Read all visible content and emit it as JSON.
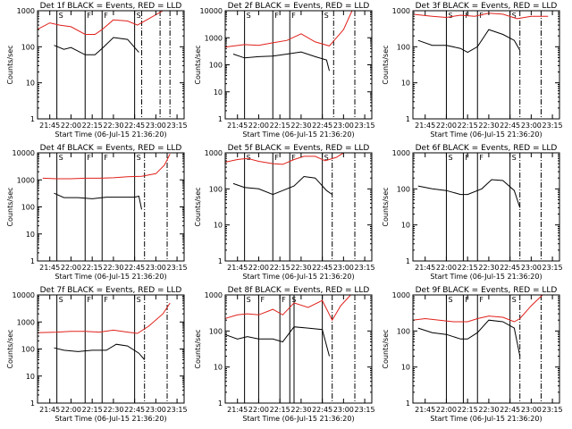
{
  "chart_data": [
    {
      "type": "line",
      "title": "Det 1f BLACK = Events, RED = LLD",
      "xlabel": "Start Time (06-Jul-15 21:36:20)",
      "ylabel": "Counts/sec",
      "log_y": true,
      "ylim": [
        1,
        1000
      ],
      "xlim": [
        "21:36:20",
        "23:20"
      ],
      "x_ticks": [
        "21:45",
        "22:00",
        "22:15",
        "22:30",
        "22:45",
        "23:00",
        "23:15"
      ],
      "y_ticks": [
        "1",
        "10",
        "100",
        "1000"
      ],
      "markers": {
        "solid": [
          "21:50",
          "22:10",
          "22:22",
          "22:45"
        ],
        "dashed": [
          "22:50",
          "23:03",
          "23:10"
        ],
        "labels": [
          "S",
          "F",
          "F",
          "S"
        ]
      },
      "series": [
        {
          "color": "#e0201a",
          "x": [
            "21:36",
            "21:45",
            "21:52",
            "22:00",
            "22:10",
            "22:17",
            "22:22",
            "22:30",
            "22:40",
            "22:47",
            "22:55",
            "23:05"
          ],
          "y": [
            300,
            460,
            400,
            360,
            220,
            220,
            300,
            560,
            520,
            400,
            600,
            1000
          ]
        },
        {
          "color": "#000000",
          "x": [
            "21:48",
            "21:55",
            "22:00",
            "22:10",
            "22:17",
            "22:22",
            "22:30",
            "22:40",
            "22:48"
          ],
          "y": [
            110,
            85,
            95,
            60,
            60,
            90,
            180,
            160,
            70
          ]
        }
      ]
    },
    {
      "type": "line",
      "title": "Det 2f BLACK = Events, RED = LLD",
      "xlabel": "Start Time (06-Jul-15 21:36:20)",
      "ylabel": "Counts/sec",
      "log_y": true,
      "ylim": [
        1,
        10000
      ],
      "xlim": [
        "21:36:20",
        "23:20"
      ],
      "x_ticks": [
        "21:45",
        "22:00",
        "22:15",
        "22:30",
        "22:45",
        "23:00",
        "23:15"
      ],
      "y_ticks": [
        "1",
        "10",
        "100",
        "1000",
        "10000"
      ],
      "markers": {
        "solid": [
          "21:50",
          "22:10",
          "22:22",
          "22:45"
        ],
        "dashed": [
          "22:53",
          "23:08"
        ],
        "labels": [
          "S",
          "F",
          "F",
          "S"
        ]
      },
      "series": [
        {
          "color": "#e0201a",
          "x": [
            "21:36",
            "21:50",
            "22:00",
            "22:10",
            "22:20",
            "22:30",
            "22:40",
            "22:50",
            "23:00",
            "23:06"
          ],
          "y": [
            450,
            560,
            520,
            650,
            800,
            1400,
            700,
            500,
            2000,
            10000
          ]
        },
        {
          "color": "#000000",
          "x": [
            "21:42",
            "21:50",
            "22:00",
            "22:10",
            "22:20",
            "22:30",
            "22:40",
            "22:48",
            "22:50"
          ],
          "y": [
            250,
            180,
            200,
            210,
            250,
            300,
            200,
            150,
            60
          ]
        }
      ]
    },
    {
      "type": "line",
      "title": "Det 3f BLACK = Events, RED = LLD",
      "xlabel": "Start Time (06-Jul-15 21:36:20)",
      "ylabel": "Counts/sec",
      "log_y": true,
      "ylim": [
        1,
        1000
      ],
      "xlim": [
        "21:36:20",
        "23:20"
      ],
      "x_ticks": [
        "21:45",
        "22:00",
        "22:15",
        "22:30",
        "22:45",
        "23:00",
        "23:15"
      ],
      "y_ticks": [
        "1",
        "10",
        "100",
        "1000"
      ],
      "markers": {
        "solid": [
          "22:00",
          "22:12",
          "22:22",
          "22:45"
        ],
        "dashed": [
          "22:52",
          "23:07"
        ],
        "labels": [
          "S",
          "F",
          "F",
          "S"
        ]
      },
      "series": [
        {
          "color": "#e0201a",
          "x": [
            "21:36",
            "21:50",
            "22:00",
            "22:10",
            "22:20",
            "22:30",
            "22:40",
            "22:50",
            "23:00",
            "23:12"
          ],
          "y": [
            800,
            700,
            650,
            750,
            700,
            850,
            800,
            600,
            700,
            700
          ]
        },
        {
          "color": "#000000",
          "x": [
            "21:40",
            "21:50",
            "22:00",
            "22:10",
            "22:15",
            "22:22",
            "22:30",
            "22:40",
            "22:48",
            "22:52"
          ],
          "y": [
            150,
            110,
            110,
            90,
            70,
            100,
            300,
            220,
            150,
            80
          ]
        }
      ]
    },
    {
      "type": "line",
      "title": "Det 4f BLACK = Events, RED = LLD",
      "xlabel": "Start Time (06-Jul-15 21:36:20)",
      "ylabel": "Counts/sec",
      "log_y": true,
      "ylim": [
        1,
        10000
      ],
      "xlim": [
        "21:36:20",
        "23:20"
      ],
      "x_ticks": [
        "21:45",
        "22:00",
        "22:15",
        "22:30",
        "22:45",
        "23:00",
        "23:15"
      ],
      "y_ticks": [
        "1",
        "10",
        "100",
        "1000",
        "10000"
      ],
      "markers": {
        "solid": [
          "21:50",
          "22:10",
          "22:22",
          "22:45"
        ],
        "dashed": [
          "22:52",
          "23:08"
        ],
        "labels": [
          "S",
          "F",
          "F",
          "S"
        ]
      },
      "series": [
        {
          "color": "#e0201a",
          "x": [
            "21:40",
            "21:50",
            "22:00",
            "22:10",
            "22:20",
            "22:30",
            "22:40",
            "22:50",
            "23:00",
            "23:06",
            "23:10"
          ],
          "y": [
            1150,
            1100,
            1100,
            1150,
            1150,
            1200,
            1300,
            1350,
            1700,
            3500,
            9000
          ]
        },
        {
          "color": "#000000",
          "x": [
            "21:48",
            "21:55",
            "22:05",
            "22:15",
            "22:25",
            "22:35",
            "22:45",
            "22:48",
            "22:50"
          ],
          "y": [
            320,
            220,
            220,
            200,
            230,
            230,
            230,
            250,
            80
          ]
        }
      ]
    },
    {
      "type": "line",
      "title": "Det 5f BLACK = Events, RED = LLD",
      "xlabel": "Start Time (06-Jul-15 21:36:20)",
      "ylabel": "Counts/sec",
      "log_y": true,
      "ylim": [
        1,
        1000
      ],
      "xlim": [
        "21:36:20",
        "23:20"
      ],
      "x_ticks": [
        "21:45",
        "22:00",
        "22:15",
        "22:30",
        "22:45",
        "23:00",
        "23:15"
      ],
      "y_ticks": [
        "1",
        "10",
        "100",
        "1000"
      ],
      "markers": {
        "solid": [
          "21:50",
          "22:10",
          "22:22",
          "22:45"
        ],
        "dashed": [
          "22:52",
          "23:08"
        ],
        "labels": [
          "S",
          "F",
          "F",
          "S"
        ]
      },
      "series": [
        {
          "color": "#e0201a",
          "x": [
            "21:36",
            "21:45",
            "21:52",
            "22:00",
            "22:10",
            "22:17",
            "22:25",
            "22:32",
            "22:40",
            "22:47",
            "22:55",
            "23:00"
          ],
          "y": [
            550,
            650,
            700,
            580,
            500,
            480,
            650,
            800,
            800,
            600,
            750,
            1000
          ]
        },
        {
          "color": "#000000",
          "x": [
            "21:42",
            "21:50",
            "22:00",
            "22:10",
            "22:17",
            "22:25",
            "22:32",
            "22:40",
            "22:48",
            "22:52"
          ],
          "y": [
            140,
            110,
            100,
            70,
            90,
            120,
            220,
            200,
            90,
            70
          ]
        }
      ]
    },
    {
      "type": "line",
      "title": "Det 6f BLACK = Events, RED = LLD",
      "xlabel": "Start Time (06-Jul-15 21:36:20)",
      "ylabel": "Counts/sec",
      "log_y": true,
      "ylim": [
        1,
        1000
      ],
      "xlim": [
        "21:36:20",
        "23:20"
      ],
      "x_ticks": [
        "21:45",
        "22:00",
        "22:15",
        "22:30",
        "22:45",
        "23:00",
        "23:15"
      ],
      "y_ticks": [
        "1",
        "10",
        "100",
        "1000"
      ],
      "markers": {
        "solid": [
          "22:00",
          "22:12",
          "22:22",
          "22:45"
        ],
        "dashed": [
          "22:52",
          "23:07"
        ],
        "labels": [
          "S",
          "F",
          "F",
          "S"
        ]
      },
      "series": [
        {
          "color": "#000000",
          "x": [
            "21:40",
            "21:50",
            "22:00",
            "22:10",
            "22:15",
            "22:25",
            "22:32",
            "22:40",
            "22:48",
            "22:52"
          ],
          "y": [
            120,
            100,
            90,
            70,
            70,
            100,
            180,
            170,
            90,
            30
          ]
        }
      ]
    },
    {
      "type": "line",
      "title": "Det 7f BLACK = Events, RED = LLD",
      "xlabel": "Start Time (06-Jul-15 21:36:20)",
      "ylabel": "Counts/sec",
      "log_y": true,
      "ylim": [
        1,
        10000
      ],
      "xlim": [
        "21:36:20",
        "23:20"
      ],
      "x_ticks": [
        "21:45",
        "22:00",
        "22:15",
        "22:30",
        "22:45",
        "23:00",
        "23:15"
      ],
      "y_ticks": [
        "1",
        "10",
        "100",
        "1000",
        "10000"
      ],
      "markers": {
        "solid": [
          "21:50",
          "22:10",
          "22:22",
          "22:45"
        ],
        "dashed": [
          "22:52",
          "23:08"
        ],
        "labels": [
          "S",
          "F",
          "F",
          "S"
        ]
      },
      "series": [
        {
          "color": "#e0201a",
          "x": [
            "21:36",
            "21:50",
            "22:00",
            "22:10",
            "22:20",
            "22:30",
            "22:40",
            "22:47",
            "22:55",
            "23:05",
            "23:10"
          ],
          "y": [
            400,
            420,
            450,
            450,
            420,
            500,
            420,
            380,
            700,
            2000,
            5000
          ]
        },
        {
          "color": "#000000",
          "x": [
            "21:48",
            "21:55",
            "22:05",
            "22:15",
            "22:25",
            "22:32",
            "22:40",
            "22:48",
            "22:52"
          ],
          "y": [
            110,
            90,
            80,
            90,
            90,
            150,
            130,
            70,
            40
          ]
        }
      ]
    },
    {
      "type": "line",
      "title": "Det 8f BLACK = Events, RED = LLD",
      "xlabel": "Start Time (06-Jul-15 21:36:20)",
      "ylabel": "Counts/sec",
      "log_y": true,
      "ylim": [
        1,
        1000
      ],
      "xlim": [
        "21:36:20",
        "23:20"
      ],
      "x_ticks": [
        "21:45",
        "22:00",
        "22:15",
        "22:30",
        "22:45",
        "23:00",
        "23:15"
      ],
      "y_ticks": [
        "1",
        "10",
        "100",
        "1000"
      ],
      "markers": {
        "solid": [
          "21:50",
          "22:00",
          "22:15",
          "22:22",
          "22:25",
          "22:45"
        ],
        "dashed": [
          "22:52",
          "23:08"
        ],
        "labels": [
          "S",
          "F",
          "F",
          "S"
        ]
      },
      "series": [
        {
          "color": "#e0201a",
          "x": [
            "21:36",
            "21:45",
            "21:52",
            "22:00",
            "22:10",
            "22:17",
            "22:25",
            "22:35",
            "22:45",
            "22:52",
            "22:58",
            "23:05"
          ],
          "y": [
            220,
            280,
            300,
            280,
            400,
            280,
            600,
            450,
            700,
            200,
            500,
            1000
          ]
        },
        {
          "color": "#000000",
          "x": [
            "21:36",
            "21:45",
            "21:52",
            "22:00",
            "22:10",
            "22:17",
            "22:25",
            "22:35",
            "22:45",
            "22:50"
          ],
          "y": [
            80,
            60,
            70,
            60,
            60,
            50,
            130,
            120,
            110,
            20
          ]
        }
      ]
    },
    {
      "type": "line",
      "title": "Det 9f BLACK = Events, RED = LLD",
      "xlabel": "Start Time (06-Jul-15 21:36:20)",
      "ylabel": "Counts/sec",
      "log_y": true,
      "ylim": [
        1,
        1000
      ],
      "xlim": [
        "21:36:20",
        "23:20"
      ],
      "x_ticks": [
        "21:45",
        "22:00",
        "22:15",
        "22:30",
        "22:45",
        "23:00",
        "23:15"
      ],
      "y_ticks": [
        "1",
        "10",
        "100",
        "1000"
      ],
      "markers": {
        "solid": [
          "22:00",
          "22:12",
          "22:22",
          "22:45"
        ],
        "dashed": [
          "22:52",
          "23:07"
        ],
        "labels": [
          "S",
          "F",
          "F",
          "S"
        ]
      },
      "series": [
        {
          "color": "#e0201a",
          "x": [
            "21:36",
            "21:45",
            "21:55",
            "22:05",
            "22:15",
            "22:22",
            "22:30",
            "22:40",
            "22:48",
            "22:52",
            "23:00",
            "23:08"
          ],
          "y": [
            200,
            220,
            200,
            180,
            180,
            220,
            260,
            240,
            180,
            220,
            500,
            1000
          ]
        },
        {
          "color": "#000000",
          "x": [
            "21:40",
            "21:50",
            "22:00",
            "22:10",
            "22:15",
            "22:22",
            "22:30",
            "22:40",
            "22:48",
            "22:52"
          ],
          "y": [
            120,
            90,
            80,
            60,
            60,
            90,
            200,
            180,
            120,
            20
          ]
        }
      ]
    }
  ]
}
